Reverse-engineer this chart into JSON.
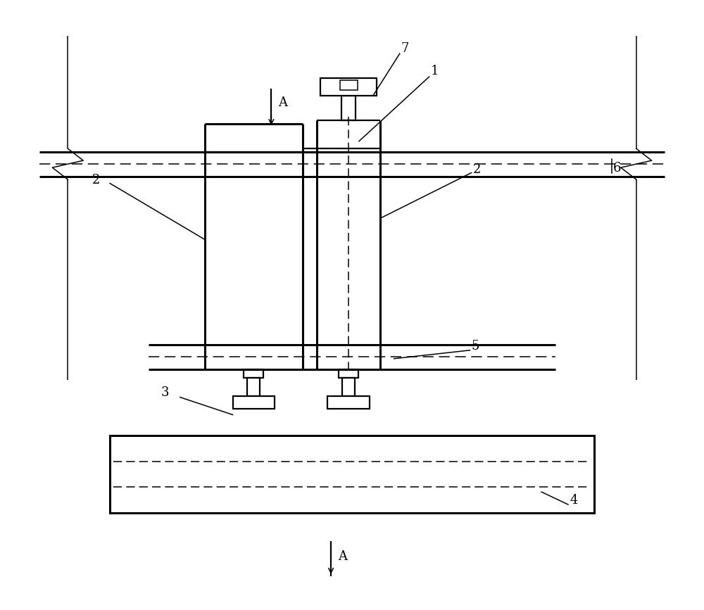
{
  "bg_color": "#ffffff",
  "line_color": "#000000",
  "fig_width": 10.0,
  "fig_height": 8.67,
  "dpi": 100,
  "lw_thick": 2.2,
  "lw_medium": 1.6,
  "lw_thin": 1.1,
  "label_fs": 13
}
